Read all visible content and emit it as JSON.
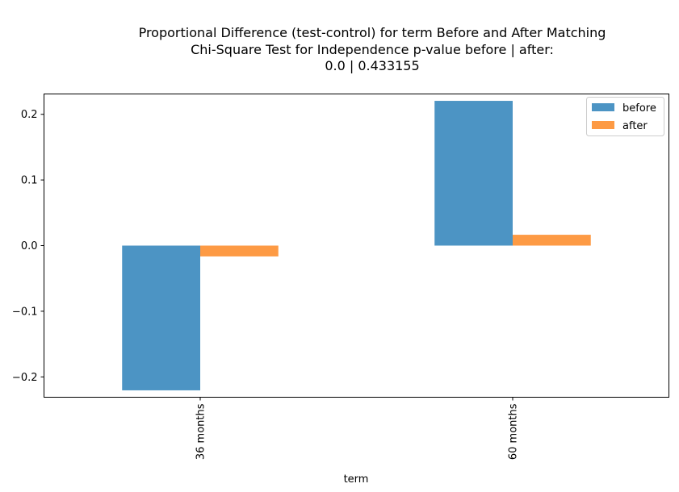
{
  "chart_data": {
    "type": "bar",
    "title_lines": [
      "Proportional Difference (test-control) for term Before and After Matching",
      "Chi-Square Test for Independence p-value before | after:",
      "0.0 | 0.433155"
    ],
    "xlabel": "term",
    "ylabel": "",
    "categories": [
      "36 months",
      "60 months"
    ],
    "series": [
      {
        "name": "before",
        "values": [
          -0.2205,
          0.2205
        ],
        "color": "#4c94c4"
      },
      {
        "name": "after",
        "values": [
          -0.0165,
          0.0165
        ],
        "color": "#fd9a44"
      }
    ],
    "ylim": [
      -0.231,
      0.231
    ],
    "yticks": [
      -0.2,
      -0.1,
      0.0,
      0.1,
      0.2
    ],
    "ytick_labels": [
      "−0.2",
      "−0.1",
      "0.0",
      "0.1",
      "0.2"
    ],
    "grid": false,
    "legend_position": "top-right"
  }
}
